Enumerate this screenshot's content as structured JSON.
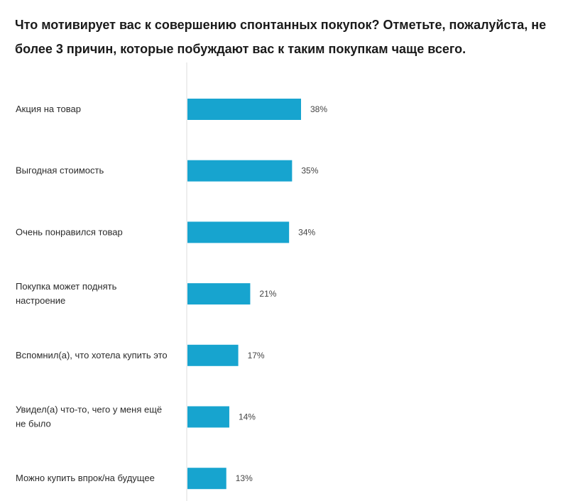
{
  "chart_data": {
    "type": "bar",
    "orientation": "horizontal",
    "title": "Что мотивирует вас к совершению спонтанных покупок? Отметьте, пожалуйста, не более 3 причин, которые побуждают вас к таким покупкам чаще всего.",
    "categories": [
      [
        "Акция на товар"
      ],
      [
        "Выгодная стоимость"
      ],
      [
        "Очень понравился товар"
      ],
      [
        "Покупка может поднять",
        "настроение"
      ],
      [
        "Вспомнил(а), что хотела купить это"
      ],
      [
        "Увидел(а) что-то, чего у меня ещё",
        "не было"
      ],
      [
        "Можно купить впрок/на будущее"
      ]
    ],
    "values": [
      38,
      35,
      34,
      21,
      17,
      14,
      13
    ],
    "value_labels": [
      "38%",
      "35%",
      "34%",
      "21%",
      "17%",
      "14%",
      "13%"
    ],
    "xlim": [
      0,
      100
    ],
    "grid": false,
    "legend": "none",
    "colors": {
      "bar": "#17a4cf",
      "axis": "#dcdcdc"
    }
  }
}
